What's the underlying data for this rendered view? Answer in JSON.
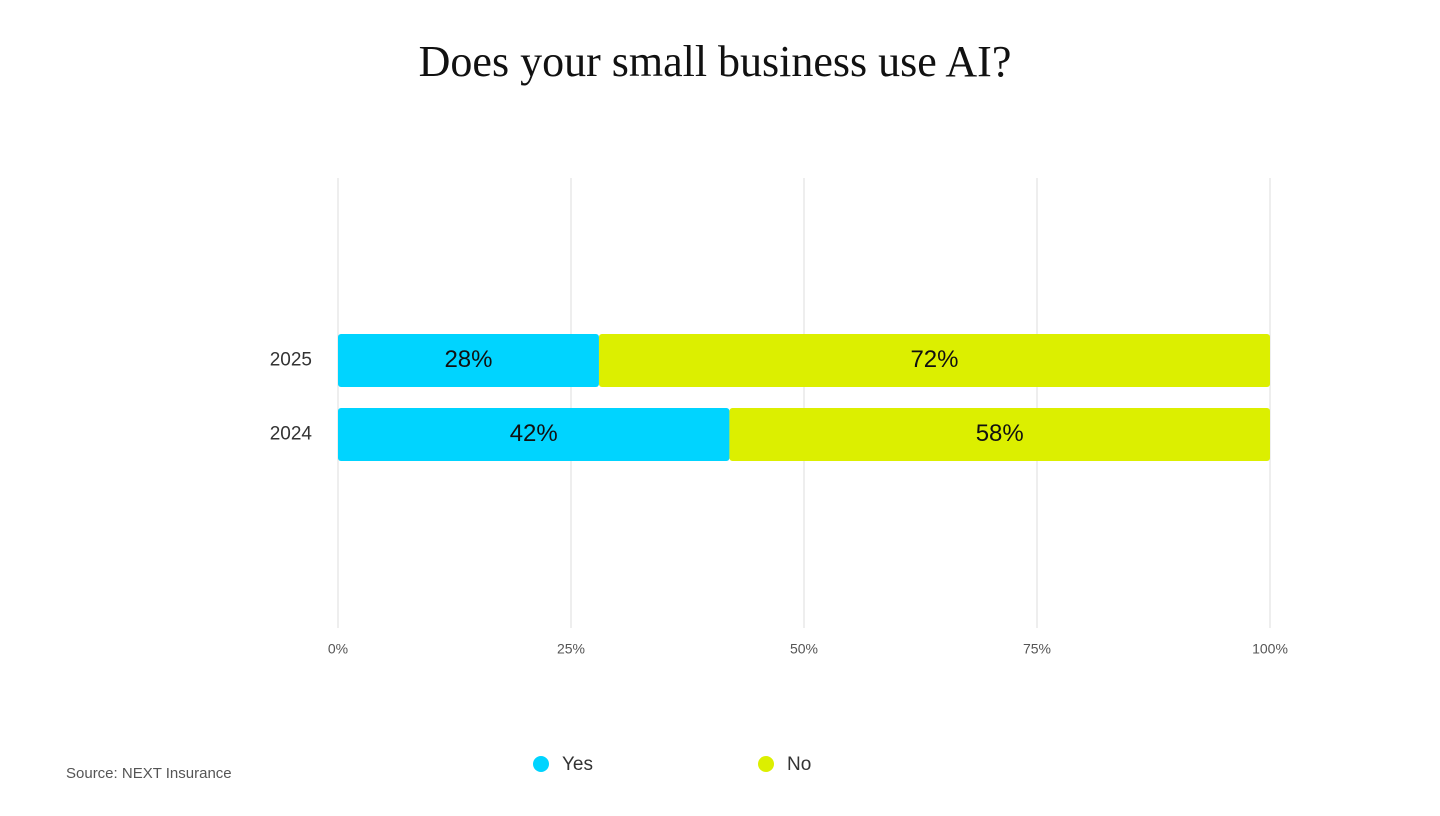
{
  "chart_data": {
    "type": "stacked-bar-horizontal",
    "title": "Does your small business use AI?",
    "source": "Source: NEXT Insurance",
    "categories": [
      "2025",
      "2024"
    ],
    "series": [
      {
        "name": "Yes",
        "color": "#00d4ff",
        "values": [
          28,
          42
        ],
        "value_labels": [
          "28%",
          "42%"
        ]
      },
      {
        "name": "No",
        "color": "#dcef00",
        "values": [
          72,
          58
        ],
        "value_labels": [
          "72%",
          "58%"
        ]
      }
    ],
    "xlim": [
      0,
      100
    ],
    "xticks": [
      {
        "value": 0,
        "label": "0%"
      },
      {
        "value": 25,
        "label": "25%"
      },
      {
        "value": 50,
        "label": "50%"
      },
      {
        "value": 75,
        "label": "75%"
      },
      {
        "value": 100,
        "label": "100%"
      }
    ],
    "grid": true,
    "legend": "bottom"
  }
}
